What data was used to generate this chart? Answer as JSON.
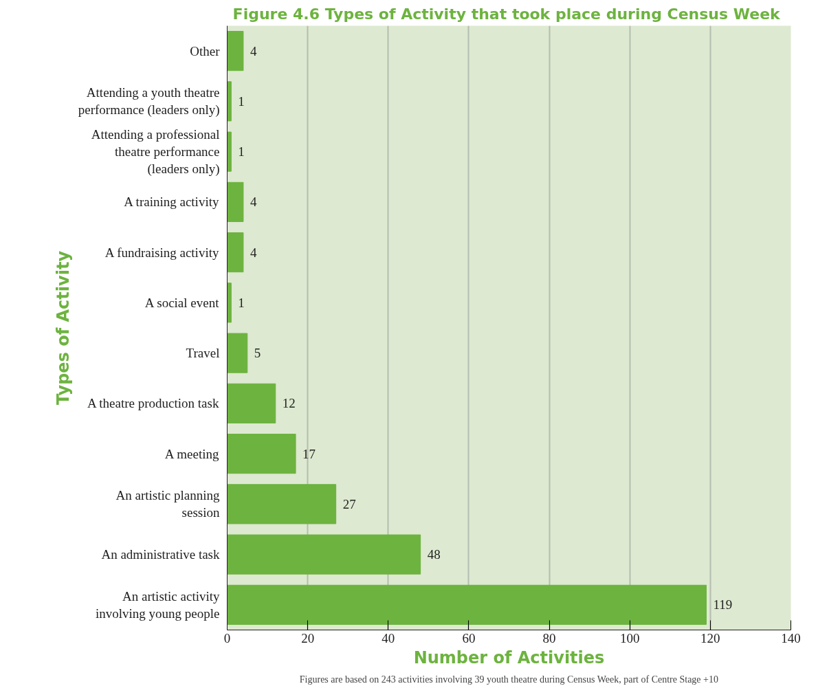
{
  "chart_data": {
    "type": "bar",
    "orientation": "horizontal",
    "title": "Figure 4.6  Types of Activity that took place during Census Week",
    "xlabel": "Number of Activities",
    "ylabel": "Types of Activity",
    "categories": [
      "Other",
      "Attending a youth theatre performance (leaders only)",
      "Attending a professional theatre performance (leaders only)",
      "A training activity",
      "A fundraising activity",
      "A social event",
      "Travel",
      "A theatre production task",
      "A meeting",
      "An artistic planning session",
      "An administrative task",
      "An artistic activity involving young people"
    ],
    "values": [
      4,
      1,
      1,
      4,
      4,
      1,
      5,
      12,
      17,
      27,
      48,
      119
    ],
    "color": "#6db33f",
    "xlim": [
      0,
      140
    ],
    "xticks": [
      0,
      20,
      40,
      60,
      80,
      100,
      120,
      140
    ],
    "grid": "x",
    "data_labels": true,
    "annotations": [
      "Figures are based on 243 activities involving 39 youth theatre during Census Week, part of Centre Stage +10"
    ]
  }
}
